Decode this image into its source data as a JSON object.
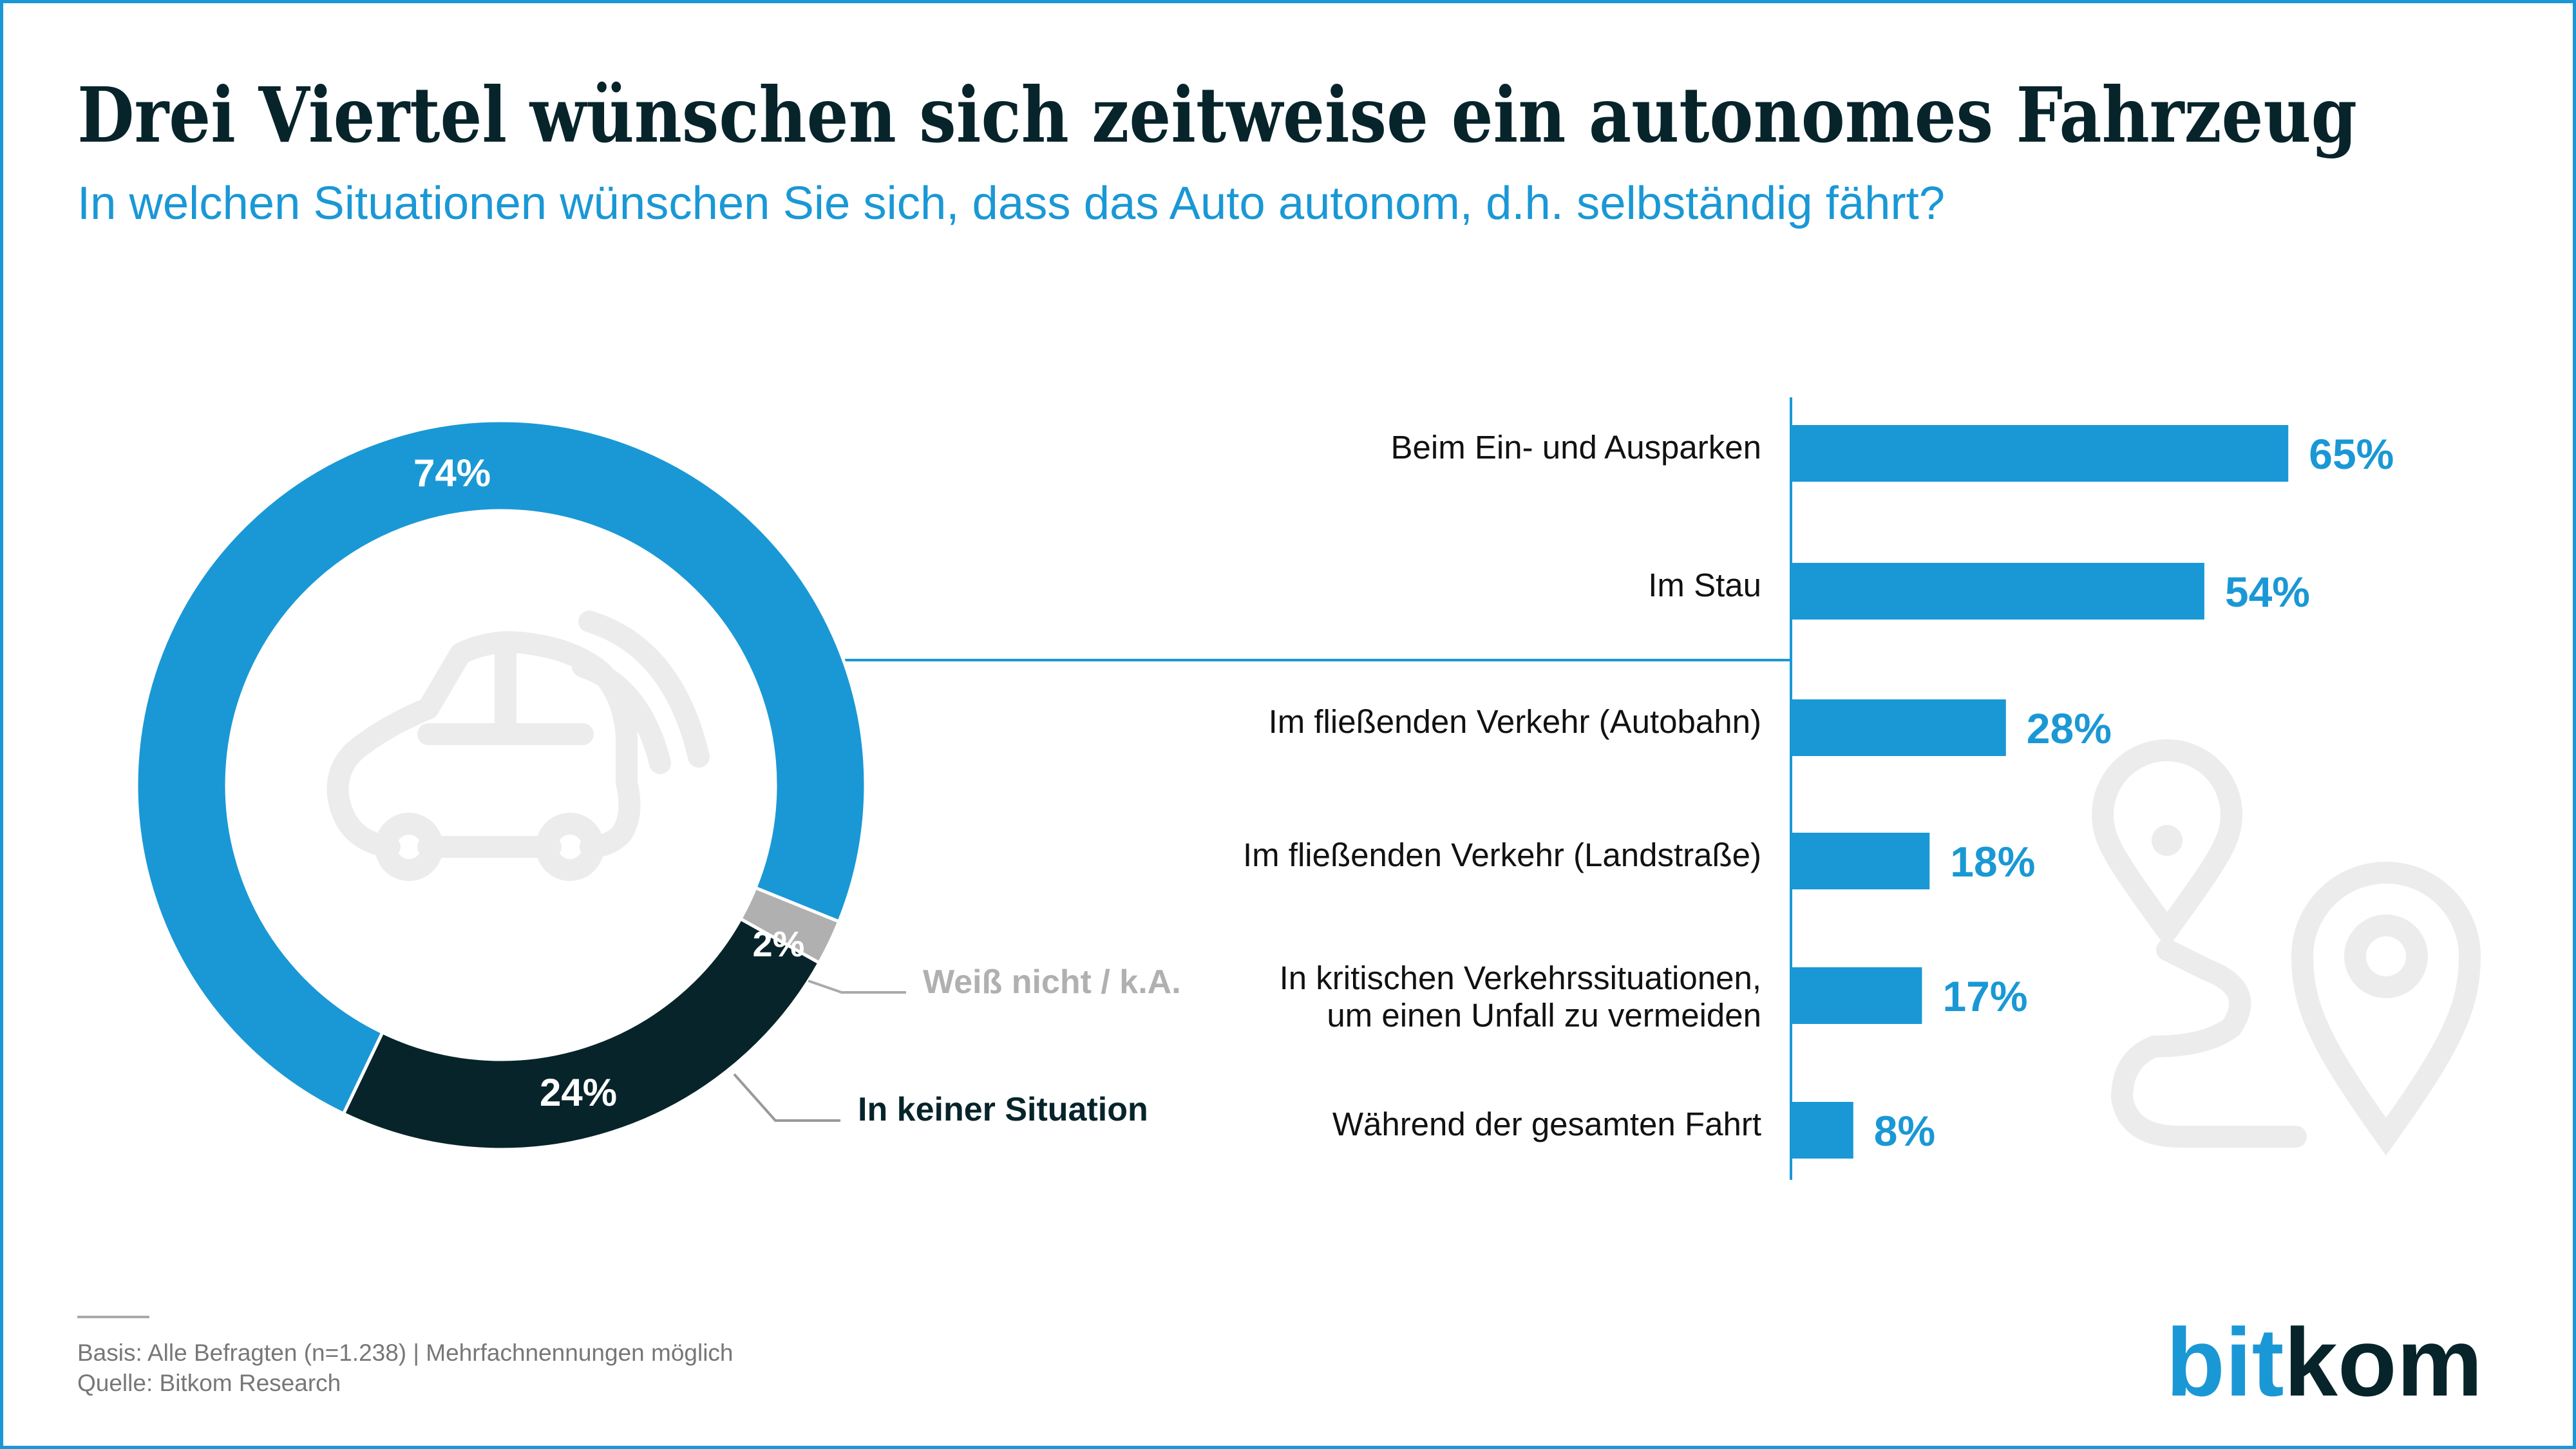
{
  "header": {
    "title": "Drei Viertel wünschen sich zeitweise ein autonomes Fahrzeug",
    "subtitle": "In welchen Situationen wünschen Sie sich, dass das Auto autonom, d.h. selbständig fährt?"
  },
  "colors": {
    "blue": "#1a98d5",
    "dark": "#07242b",
    "gray": "#b0b0b0",
    "icon": "#ececec"
  },
  "icons": [
    "car-icon",
    "map-pin-route-icon"
  ],
  "chart_data": [
    {
      "type": "pie",
      "subtype": "donut",
      "slices": [
        {
          "label": "",
          "value": 74,
          "value_label": "74%",
          "color": "#1a98d5"
        },
        {
          "label": "Weiß nicht / k.A.",
          "value": 2,
          "value_label": "2%",
          "color": "#b0b0b0"
        },
        {
          "label": "In keiner Situation",
          "value": 24,
          "value_label": "24%",
          "color": "#07242b"
        }
      ]
    },
    {
      "type": "bar",
      "orientation": "horizontal",
      "categories": [
        [
          "Beim Ein- und Ausparken"
        ],
        [
          "Im Stau"
        ],
        [
          "Im fließenden Verkehr (Autobahn)"
        ],
        [
          "Im fließenden Verkehr (Landstraße)"
        ],
        [
          "In kritischen Verkehrssituationen,",
          "um einen Unfall zu vermeiden"
        ],
        [
          "Während der gesamten Fahrt"
        ]
      ],
      "values": [
        65,
        54,
        28,
        18,
        17,
        8
      ],
      "value_labels": [
        "65%",
        "54%",
        "28%",
        "18%",
        "17%",
        "8%"
      ],
      "unit": "%",
      "xlim": [
        0,
        100
      ],
      "color": "#1a98d5"
    }
  ],
  "footer": {
    "basis": "Basis: Alle Befragten (n=1.238) | Mehrfachnennungen möglich",
    "source": "Quelle: Bitkom Research",
    "logo": "bitkom"
  }
}
